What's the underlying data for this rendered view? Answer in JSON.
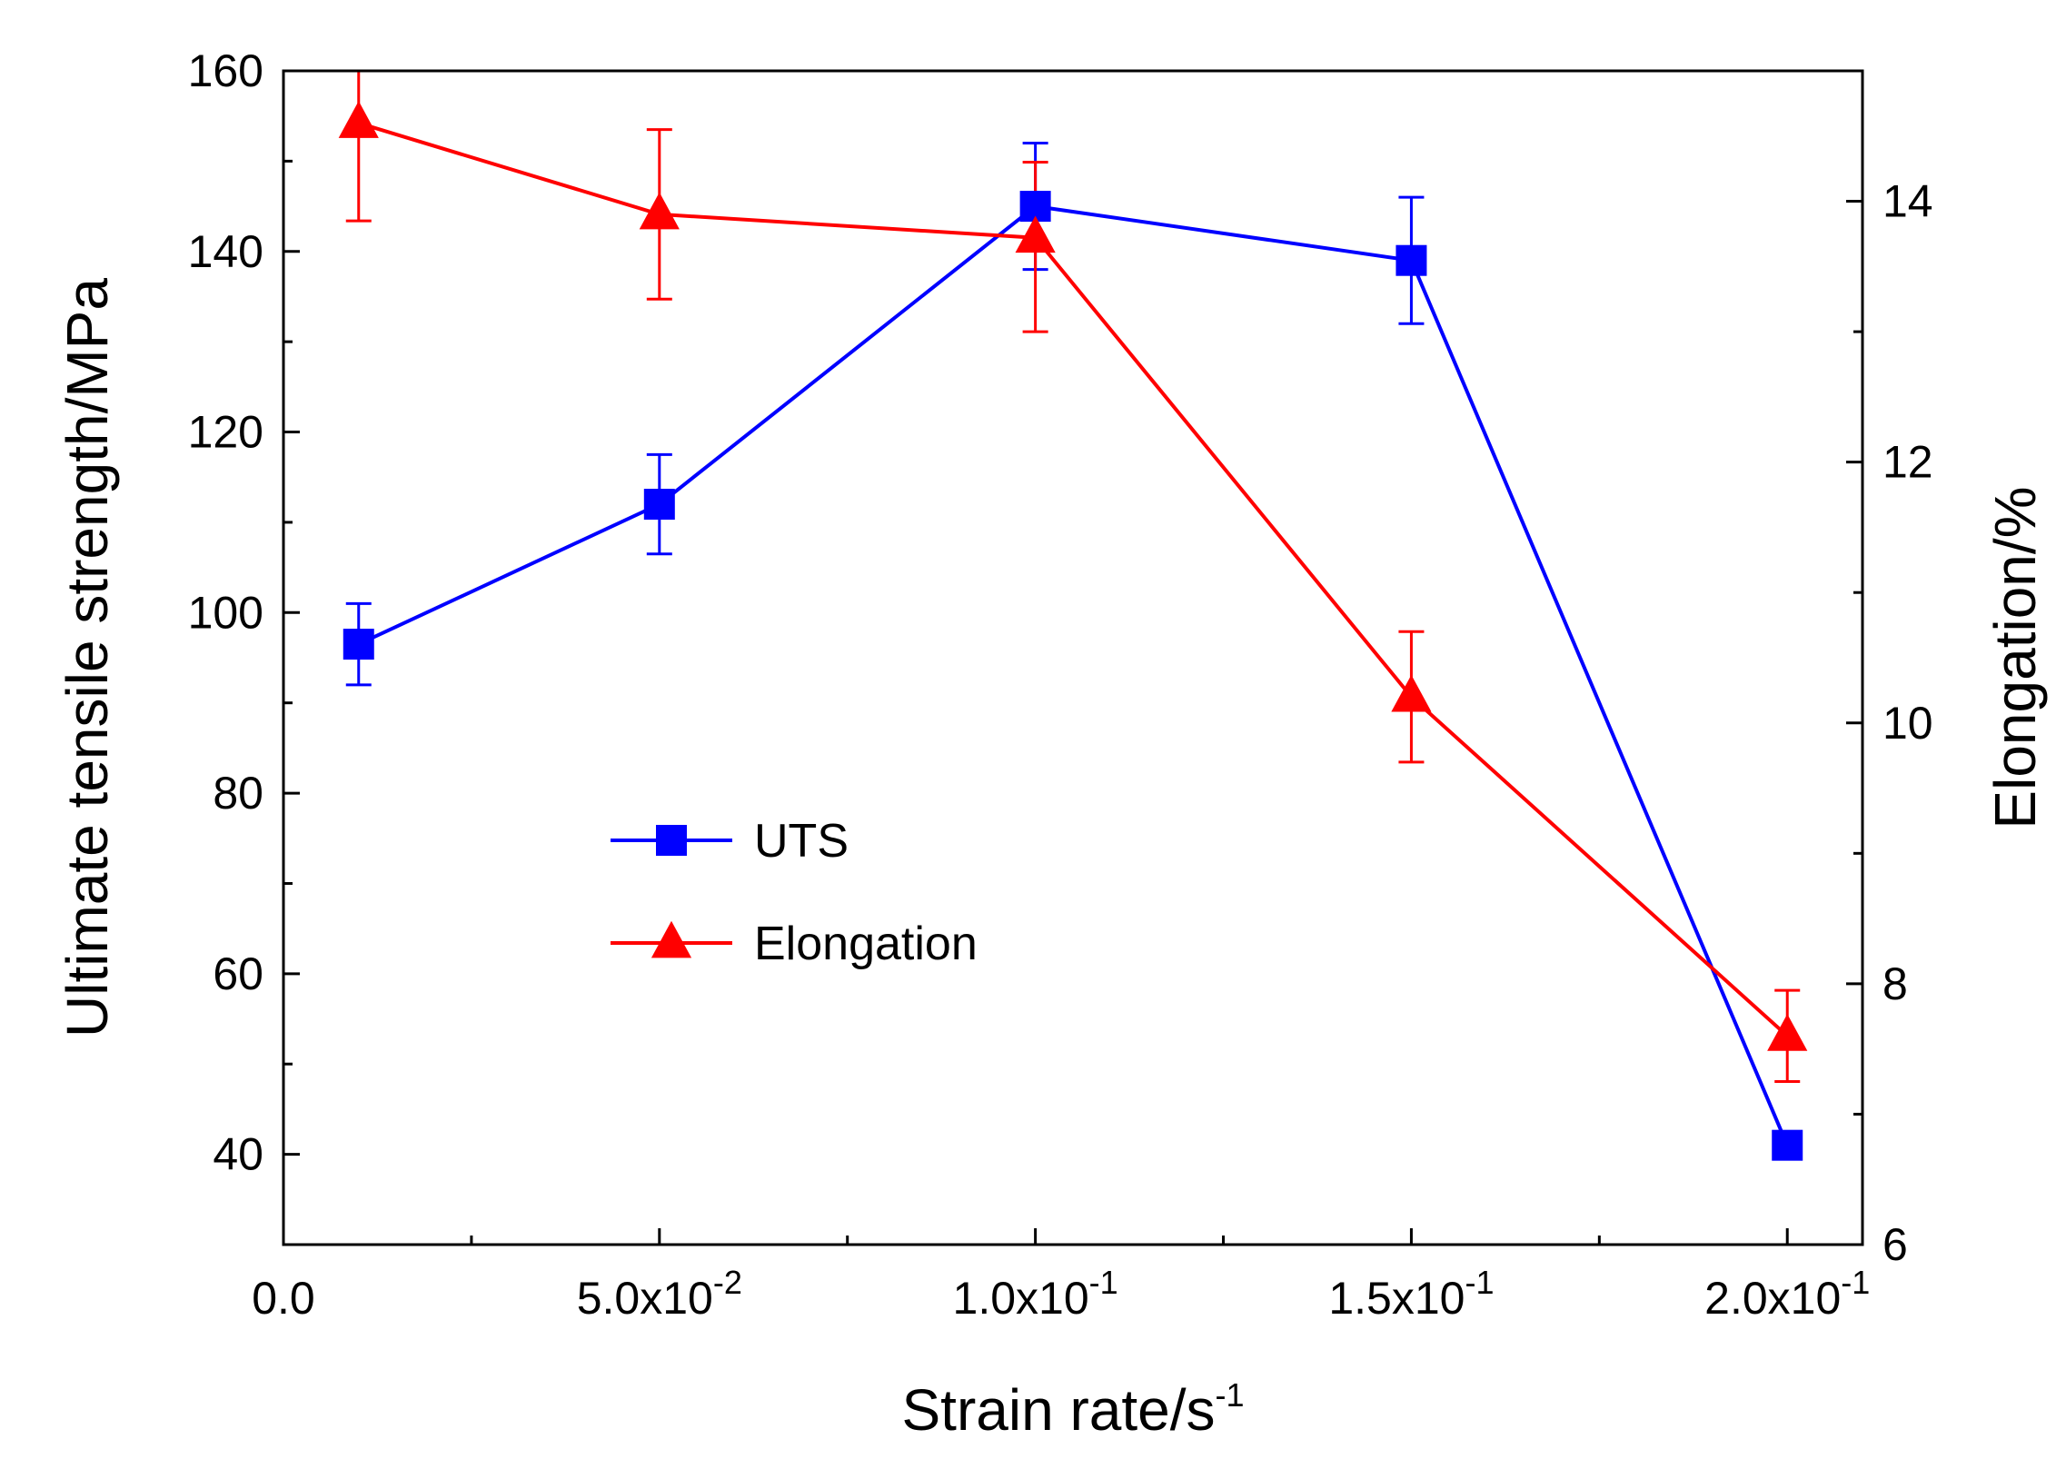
{
  "chart_data": {
    "type": "line",
    "title": "",
    "xlabel": "Strain rate/s",
    "xlabel_superscript": "-1",
    "ylabel_left": "Ultimate tensile strength/MPa",
    "ylabel_right": "Elongation/%",
    "x_range": [
      0,
      0.21
    ],
    "y_left_range": [
      30,
      160
    ],
    "y_right_range": [
      6,
      15
    ],
    "x_ticks": [
      {
        "value": 0,
        "label": "0.0",
        "sup": ""
      },
      {
        "value": 0.05,
        "label": "5.0x10",
        "sup": "-2"
      },
      {
        "value": 0.1,
        "label": "1.0x10",
        "sup": "-1"
      },
      {
        "value": 0.15,
        "label": "1.5x10",
        "sup": "-1"
      },
      {
        "value": 0.2,
        "label": "2.0x10",
        "sup": "-1"
      }
    ],
    "x_minor_ticks": [
      0.025,
      0.075,
      0.125,
      0.175
    ],
    "y_left_ticks": [
      40,
      60,
      80,
      100,
      120,
      140,
      160
    ],
    "y_right_ticks": [
      6,
      8,
      10,
      12,
      14
    ],
    "legend_position": "center-left",
    "series": [
      {
        "name": "UTS",
        "axis": "left",
        "color": "#0000ff",
        "marker": "square",
        "points": [
          {
            "x": 0.01,
            "y": 96.5,
            "err_low": 92,
            "err_high": 101
          },
          {
            "x": 0.05,
            "y": 112,
            "err_low": 106.5,
            "err_high": 117.5
          },
          {
            "x": 0.1,
            "y": 145,
            "err_low": 138,
            "err_high": 152
          },
          {
            "x": 0.15,
            "y": 139,
            "err_low": 132,
            "err_high": 146
          },
          {
            "x": 0.2,
            "y": 41,
            "err_low": 41,
            "err_high": 41
          }
        ]
      },
      {
        "name": "Elongation",
        "axis": "right",
        "color": "#ff0000",
        "marker": "triangle",
        "points": [
          {
            "x": 0.01,
            "y": 14.6,
            "err_low": 13.85,
            "err_high": 15.0
          },
          {
            "x": 0.05,
            "y": 13.9,
            "err_low": 13.25,
            "err_high": 14.55
          },
          {
            "x": 0.1,
            "y": 13.72,
            "err_low": 13.0,
            "err_high": 14.3
          },
          {
            "x": 0.15,
            "y": 10.2,
            "err_low": 9.7,
            "err_high": 10.7
          },
          {
            "x": 0.2,
            "y": 7.6,
            "err_low": 7.25,
            "err_high": 7.95
          }
        ]
      }
    ]
  }
}
